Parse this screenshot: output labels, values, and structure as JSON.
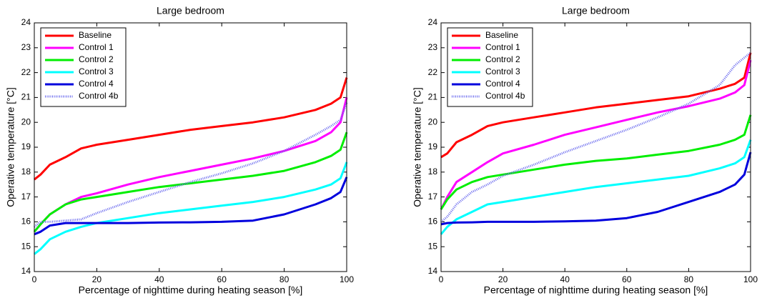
{
  "chart_data": [
    {
      "type": "line",
      "title": "Large bedroom",
      "xlabel": "Percentage of nighttime during heating season [%]",
      "ylabel": "Operative temperature [°C]",
      "x": [
        0,
        2,
        5,
        10,
        15,
        20,
        30,
        40,
        50,
        60,
        70,
        80,
        90,
        95,
        98,
        100
      ],
      "series": [
        {
          "name": "Baseline",
          "color": "#ff0000",
          "style": "solid",
          "values": [
            17.7,
            17.9,
            18.3,
            18.6,
            18.95,
            19.1,
            19.3,
            19.5,
            19.7,
            19.85,
            20.0,
            20.2,
            20.5,
            20.75,
            21.0,
            21.8
          ]
        },
        {
          "name": "Control 1",
          "color": "#ff00ff",
          "style": "solid",
          "values": [
            15.6,
            15.9,
            16.3,
            16.7,
            17.0,
            17.15,
            17.5,
            17.8,
            18.05,
            18.3,
            18.55,
            18.85,
            19.25,
            19.6,
            20.0,
            21.0
          ]
        },
        {
          "name": "Control 2",
          "color": "#00ee00",
          "style": "solid",
          "values": [
            15.6,
            15.9,
            16.3,
            16.7,
            16.9,
            17.0,
            17.2,
            17.4,
            17.55,
            17.7,
            17.85,
            18.05,
            18.4,
            18.65,
            18.9,
            19.6
          ]
        },
        {
          "name": "Control 3",
          "color": "#00ffff",
          "style": "solid",
          "values": [
            14.7,
            14.9,
            15.3,
            15.6,
            15.8,
            15.95,
            16.15,
            16.35,
            16.5,
            16.65,
            16.8,
            17.0,
            17.3,
            17.5,
            17.75,
            18.4
          ]
        },
        {
          "name": "Control 4",
          "color": "#0000dd",
          "style": "solid",
          "values": [
            15.5,
            15.6,
            15.85,
            15.95,
            15.95,
            15.95,
            15.95,
            15.97,
            15.98,
            16.0,
            16.05,
            16.3,
            16.7,
            16.95,
            17.2,
            17.8
          ]
        },
        {
          "name": "Control 4b",
          "color": "#6a6aee",
          "style": "dotted",
          "values": [
            15.8,
            16.0,
            16.0,
            16.05,
            16.1,
            16.35,
            16.8,
            17.2,
            17.6,
            17.95,
            18.35,
            18.85,
            19.5,
            19.85,
            20.1,
            20.8
          ]
        }
      ],
      "xlim": [
        0,
        100
      ],
      "xticks": [
        0,
        20,
        40,
        60,
        80,
        100
      ],
      "ylim": [
        14,
        24
      ],
      "yticks": [
        14,
        15,
        16,
        17,
        18,
        19,
        20,
        21,
        22,
        23,
        24
      ],
      "grid": false,
      "legend": "upper left"
    },
    {
      "type": "line",
      "title": "Large bedroom",
      "xlabel": "Percentage of nighttime during heating season [%]",
      "ylabel": "Operative temperature [°C]",
      "x": [
        0,
        2,
        5,
        10,
        15,
        20,
        30,
        40,
        50,
        60,
        70,
        80,
        90,
        95,
        98,
        100
      ],
      "series": [
        {
          "name": "Baseline",
          "color": "#ff0000",
          "style": "solid",
          "values": [
            18.6,
            18.75,
            19.2,
            19.5,
            19.85,
            20.0,
            20.2,
            20.4,
            20.6,
            20.75,
            20.9,
            21.05,
            21.35,
            21.55,
            21.8,
            22.8
          ]
        },
        {
          "name": "Control 1",
          "color": "#ff00ff",
          "style": "solid",
          "values": [
            16.5,
            17.0,
            17.6,
            18.0,
            18.4,
            18.75,
            19.1,
            19.5,
            19.8,
            20.1,
            20.4,
            20.65,
            20.95,
            21.2,
            21.5,
            22.5
          ]
        },
        {
          "name": "Control 2",
          "color": "#00ee00",
          "style": "solid",
          "values": [
            16.5,
            16.9,
            17.3,
            17.6,
            17.8,
            17.9,
            18.1,
            18.3,
            18.45,
            18.55,
            18.7,
            18.85,
            19.1,
            19.3,
            19.5,
            20.3
          ]
        },
        {
          "name": "Control 3",
          "color": "#00ffff",
          "style": "solid",
          "values": [
            15.5,
            15.8,
            16.1,
            16.4,
            16.7,
            16.8,
            17.0,
            17.2,
            17.4,
            17.55,
            17.7,
            17.85,
            18.15,
            18.35,
            18.6,
            19.3
          ]
        },
        {
          "name": "Control 4",
          "color": "#0000dd",
          "style": "solid",
          "values": [
            15.9,
            15.95,
            15.97,
            15.98,
            16.0,
            16.0,
            16.0,
            16.02,
            16.05,
            16.15,
            16.4,
            16.8,
            17.2,
            17.5,
            17.9,
            18.8
          ]
        },
        {
          "name": "Control 4b",
          "color": "#6a6aee",
          "style": "dotted",
          "values": [
            16.0,
            16.2,
            16.7,
            17.2,
            17.5,
            17.85,
            18.3,
            18.8,
            19.25,
            19.7,
            20.2,
            20.75,
            21.5,
            22.3,
            22.6,
            22.8
          ]
        }
      ],
      "xlim": [
        0,
        100
      ],
      "xticks": [
        0,
        20,
        40,
        60,
        80,
        100
      ],
      "ylim": [
        14,
        24
      ],
      "yticks": [
        14,
        15,
        16,
        17,
        18,
        19,
        20,
        21,
        22,
        23,
        24
      ],
      "grid": false,
      "legend": "upper left"
    }
  ]
}
